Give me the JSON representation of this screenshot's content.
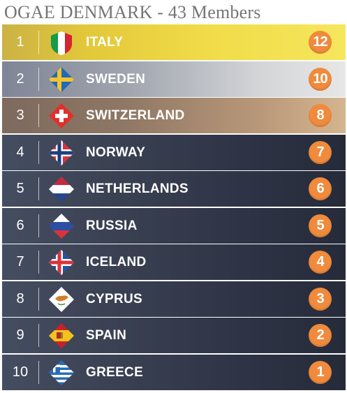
{
  "title": "OGAE DENMARK - 43 Members",
  "colors": {
    "points_badge": "#f08a3c",
    "gold": "#f1dc48",
    "silver": "#d3d5d7",
    "bronze": "#b99879",
    "dark": "#2e3446"
  },
  "rows": [
    {
      "rank": "1",
      "country": "ITALY",
      "points": "12",
      "flag_icon": "italy-flag-icon"
    },
    {
      "rank": "2",
      "country": "SWEDEN",
      "points": "10",
      "flag_icon": "sweden-flag-icon"
    },
    {
      "rank": "3",
      "country": "SWITZERLAND",
      "points": "8",
      "flag_icon": "switzerland-flag-icon"
    },
    {
      "rank": "4",
      "country": "NORWAY",
      "points": "7",
      "flag_icon": "norway-flag-icon"
    },
    {
      "rank": "5",
      "country": "NETHERLANDS",
      "points": "6",
      "flag_icon": "netherlands-flag-icon"
    },
    {
      "rank": "6",
      "country": "RUSSIA",
      "points": "5",
      "flag_icon": "russia-flag-icon"
    },
    {
      "rank": "7",
      "country": "ICELAND",
      "points": "4",
      "flag_icon": "iceland-flag-icon"
    },
    {
      "rank": "8",
      "country": "CYPRUS",
      "points": "3",
      "flag_icon": "cyprus-flag-icon"
    },
    {
      "rank": "9",
      "country": "SPAIN",
      "points": "2",
      "flag_icon": "spain-flag-icon"
    },
    {
      "rank": "10",
      "country": "GREECE",
      "points": "1",
      "flag_icon": "greece-flag-icon"
    }
  ]
}
